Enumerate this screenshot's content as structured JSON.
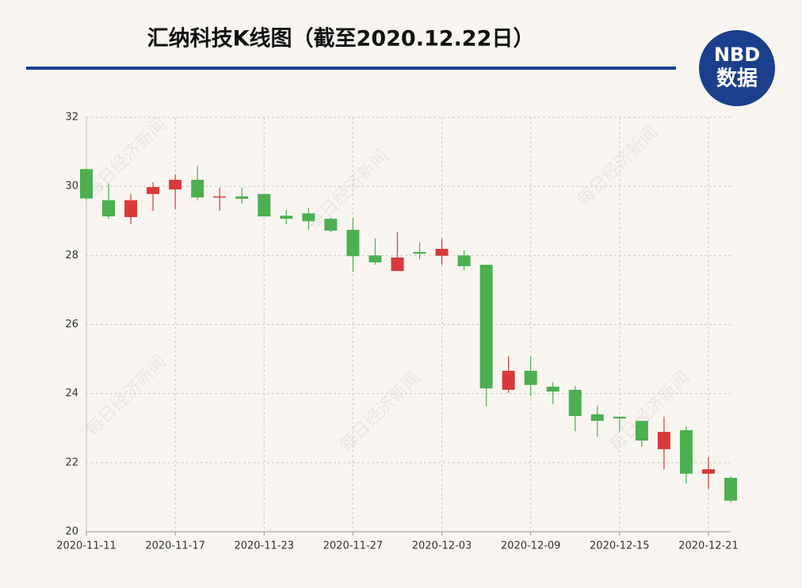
{
  "logo": {
    "name": "NBD",
    "subtitle": "数据"
  },
  "chart_data": {
    "type": "candlestick",
    "title": "汇纳科技K线图（截至2020.12.22日）",
    "watermark": "每日经济新闻",
    "categories": [
      "2020-11-11",
      null,
      null,
      null,
      "2020-11-17",
      null,
      null,
      null,
      "2020-11-23",
      null,
      null,
      null,
      "2020-11-27",
      null,
      null,
      null,
      "2020-12-03",
      null,
      null,
      null,
      "2020-12-09",
      null,
      null,
      null,
      "2020-12-15",
      null,
      null,
      null,
      "2020-12-21",
      null
    ],
    "open": [
      30.5,
      29.6,
      29.11,
      29.78,
      29.91,
      30.19,
      29.68,
      29.71,
      29.78,
      29.15,
      29.22,
      29.06,
      28.74,
      28.0,
      27.55,
      28.1,
      27.99,
      28.0,
      27.73,
      24.11,
      24.66,
      24.2,
      24.11,
      23.4,
      23.33,
      23.21,
      22.39,
      22.94,
      21.68,
      21.56
    ],
    "high": [
      30.52,
      30.08,
      29.78,
      30.12,
      30.35,
      30.6,
      29.96,
      29.96,
      29.78,
      29.32,
      29.38,
      29.1,
      29.09,
      28.49,
      28.67,
      28.38,
      28.49,
      28.15,
      27.73,
      25.09,
      25.07,
      24.34,
      24.22,
      23.65,
      23.33,
      23.21,
      23.33,
      23.05,
      22.16,
      21.6
    ],
    "low": [
      29.6,
      29.06,
      28.9,
      29.29,
      29.34,
      29.59,
      29.29,
      29.5,
      29.13,
      28.9,
      28.74,
      28.67,
      27.53,
      27.73,
      27.55,
      27.89,
      27.73,
      27.57,
      23.63,
      24.02,
      23.92,
      23.69,
      22.91,
      22.75,
      22.9,
      22.46,
      21.81,
      21.4,
      21.24,
      20.85
    ],
    "close": [
      29.65,
      29.13,
      29.6,
      29.98,
      30.19,
      29.68,
      29.71,
      29.64,
      29.13,
      29.06,
      28.99,
      28.72,
      27.98,
      27.8,
      27.94,
      28.05,
      28.19,
      27.69,
      24.15,
      24.66,
      24.25,
      24.06,
      23.35,
      23.21,
      23.28,
      22.64,
      22.89,
      21.68,
      21.81,
      20.9
    ],
    "up_color": "#d9393a",
    "down_color": "#4caf50",
    "ylim": [
      20,
      32
    ],
    "yticks": [
      20,
      22,
      24,
      26,
      28,
      30,
      32
    ],
    "grid": true
  }
}
